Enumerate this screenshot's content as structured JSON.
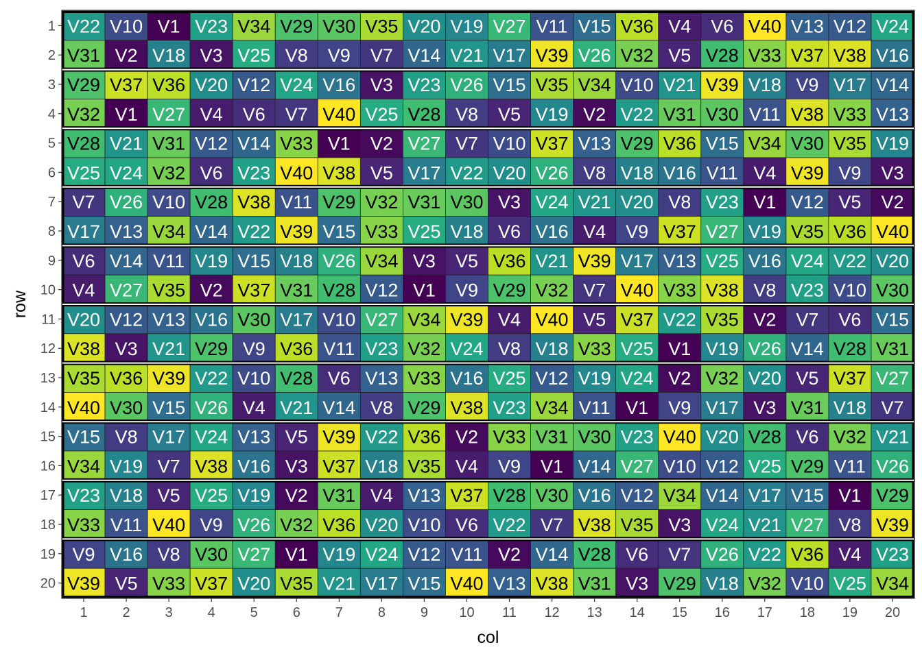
{
  "chart_data": {
    "type": "heatmap",
    "xlabel": "col",
    "ylabel": "row",
    "x_ticks": [
      "1",
      "2",
      "3",
      "4",
      "5",
      "6",
      "7",
      "8",
      "9",
      "10",
      "11",
      "12",
      "13",
      "14",
      "15",
      "16",
      "17",
      "18",
      "19",
      "20"
    ],
    "y_ticks": [
      "1",
      "2",
      "3",
      "4",
      "5",
      "6",
      "7",
      "8",
      "9",
      "10",
      "11",
      "12",
      "13",
      "14",
      "15",
      "16",
      "17",
      "18",
      "19",
      "20"
    ],
    "grid": false,
    "legend": "none",
    "block_rows": [
      [
        1,
        2
      ],
      [
        3,
        4
      ],
      [
        5,
        6
      ],
      [
        7,
        8
      ],
      [
        9,
        10
      ],
      [
        11,
        12
      ],
      [
        13,
        14
      ],
      [
        15,
        16
      ],
      [
        17,
        18
      ],
      [
        19,
        20
      ]
    ],
    "rows": [
      [
        "V22",
        "V10",
        "V1",
        "V23",
        "V34",
        "V29",
        "V30",
        "V35",
        "V20",
        "V19",
        "V27",
        "V11",
        "V15",
        "V36",
        "V4",
        "V6",
        "V40",
        "V13",
        "V12",
        "V24"
      ],
      [
        "V31",
        "V2",
        "V18",
        "V3",
        "V25",
        "V8",
        "V9",
        "V7",
        "V14",
        "V21",
        "V17",
        "V39",
        "V26",
        "V32",
        "V5",
        "V28",
        "V33",
        "V37",
        "V38",
        "V16"
      ],
      [
        "V29",
        "V37",
        "V36",
        "V20",
        "V12",
        "V24",
        "V16",
        "V3",
        "V23",
        "V26",
        "V15",
        "V35",
        "V34",
        "V10",
        "V21",
        "V39",
        "V18",
        "V9",
        "V17",
        "V14"
      ],
      [
        "V32",
        "V1",
        "V27",
        "V4",
        "V6",
        "V7",
        "V40",
        "V25",
        "V28",
        "V8",
        "V5",
        "V19",
        "V2",
        "V22",
        "V31",
        "V30",
        "V11",
        "V38",
        "V33",
        "V13"
      ],
      [
        "V28",
        "V21",
        "V31",
        "V12",
        "V14",
        "V33",
        "V1",
        "V2",
        "V27",
        "V7",
        "V10",
        "V37",
        "V13",
        "V29",
        "V36",
        "V15",
        "V34",
        "V30",
        "V35",
        "V19"
      ],
      [
        "V25",
        "V24",
        "V32",
        "V6",
        "V23",
        "V40",
        "V38",
        "V5",
        "V17",
        "V22",
        "V20",
        "V26",
        "V8",
        "V18",
        "V16",
        "V11",
        "V4",
        "V39",
        "V9",
        "V3"
      ],
      [
        "V7",
        "V26",
        "V10",
        "V28",
        "V38",
        "V11",
        "V29",
        "V32",
        "V31",
        "V30",
        "V3",
        "V24",
        "V21",
        "V20",
        "V8",
        "V23",
        "V1",
        "V12",
        "V5",
        "V2"
      ],
      [
        "V17",
        "V13",
        "V34",
        "V14",
        "V22",
        "V39",
        "V15",
        "V33",
        "V25",
        "V18",
        "V6",
        "V16",
        "V4",
        "V9",
        "V37",
        "V27",
        "V19",
        "V35",
        "V36",
        "V40"
      ],
      [
        "V6",
        "V14",
        "V11",
        "V19",
        "V15",
        "V18",
        "V26",
        "V34",
        "V3",
        "V5",
        "V36",
        "V21",
        "V39",
        "V17",
        "V13",
        "V25",
        "V16",
        "V24",
        "V22",
        "V20"
      ],
      [
        "V4",
        "V27",
        "V35",
        "V2",
        "V37",
        "V31",
        "V28",
        "V12",
        "V1",
        "V9",
        "V29",
        "V32",
        "V7",
        "V40",
        "V33",
        "V38",
        "V8",
        "V23",
        "V10",
        "V30"
      ],
      [
        "V20",
        "V12",
        "V13",
        "V16",
        "V30",
        "V17",
        "V10",
        "V27",
        "V34",
        "V39",
        "V4",
        "V40",
        "V5",
        "V37",
        "V22",
        "V35",
        "V2",
        "V7",
        "V6",
        "V15"
      ],
      [
        "V38",
        "V3",
        "V21",
        "V29",
        "V9",
        "V36",
        "V11",
        "V23",
        "V32",
        "V24",
        "V8",
        "V18",
        "V33",
        "V25",
        "V1",
        "V19",
        "V26",
        "V14",
        "V28",
        "V31"
      ],
      [
        "V35",
        "V36",
        "V39",
        "V22",
        "V10",
        "V28",
        "V6",
        "V13",
        "V33",
        "V16",
        "V25",
        "V12",
        "V19",
        "V24",
        "V2",
        "V32",
        "V20",
        "V5",
        "V37",
        "V27"
      ],
      [
        "V40",
        "V30",
        "V15",
        "V26",
        "V4",
        "V21",
        "V14",
        "V8",
        "V29",
        "V38",
        "V23",
        "V34",
        "V11",
        "V1",
        "V9",
        "V17",
        "V3",
        "V31",
        "V18",
        "V7"
      ],
      [
        "V15",
        "V8",
        "V17",
        "V24",
        "V13",
        "V5",
        "V39",
        "V22",
        "V36",
        "V2",
        "V33",
        "V31",
        "V30",
        "V23",
        "V40",
        "V20",
        "V28",
        "V6",
        "V32",
        "V21"
      ],
      [
        "V34",
        "V19",
        "V7",
        "V38",
        "V16",
        "V3",
        "V37",
        "V18",
        "V35",
        "V4",
        "V9",
        "V1",
        "V14",
        "V27",
        "V10",
        "V12",
        "V25",
        "V29",
        "V11",
        "V26"
      ],
      [
        "V23",
        "V18",
        "V5",
        "V25",
        "V19",
        "V2",
        "V31",
        "V4",
        "V13",
        "V37",
        "V28",
        "V30",
        "V16",
        "V12",
        "V34",
        "V14",
        "V17",
        "V15",
        "V1",
        "V29"
      ],
      [
        "V33",
        "V11",
        "V40",
        "V9",
        "V26",
        "V32",
        "V36",
        "V20",
        "V10",
        "V6",
        "V22",
        "V7",
        "V38",
        "V35",
        "V3",
        "V24",
        "V21",
        "V27",
        "V8",
        "V39"
      ],
      [
        "V9",
        "V16",
        "V8",
        "V30",
        "V27",
        "V1",
        "V19",
        "V24",
        "V12",
        "V11",
        "V2",
        "V14",
        "V28",
        "V6",
        "V7",
        "V26",
        "V22",
        "V36",
        "V4",
        "V23"
      ],
      [
        "V39",
        "V5",
        "V33",
        "V37",
        "V20",
        "V35",
        "V21",
        "V17",
        "V15",
        "V40",
        "V13",
        "V38",
        "V31",
        "V3",
        "V29",
        "V18",
        "V32",
        "V10",
        "V25",
        "V34"
      ]
    ]
  },
  "colors": {
    "palette": "viridis",
    "cell_border": "#222222",
    "block_border": "#000000",
    "light_text": "#ffffff",
    "dark_text": "#000000",
    "tick_text": "#4d4d4d",
    "panel_border": "#333333"
  }
}
